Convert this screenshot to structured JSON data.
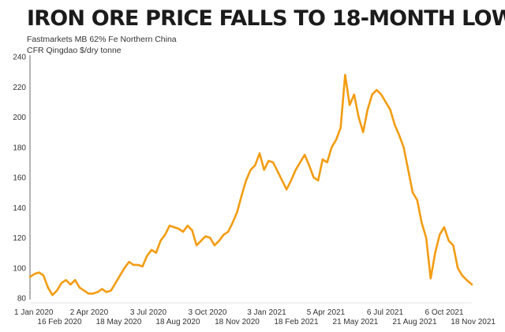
{
  "chart_data": {
    "type": "line",
    "title": "IRON ORE PRICE FALLS TO 18-MONTH LOW",
    "subtitle_lines": [
      "Fastmarkets MB 62% Fe Northern China",
      "CFR Qingdao $/dry tonne"
    ],
    "xlabel": "",
    "ylabel": "",
    "ylim": [
      80,
      240
    ],
    "y_ticks": [
      80,
      100,
      120,
      140,
      160,
      180,
      200,
      220,
      240
    ],
    "grid": false,
    "legend": "none",
    "line_color": "#F39C12",
    "x_tick_labels_top_row": [
      "1 Jan 2020",
      "2 Apr 2020",
      "3 Jul 2020",
      "3 Oct 2020",
      "3 Jan 2021",
      "5 Apr 2021",
      "6 Jul 2021",
      "6 Oct 2021"
    ],
    "x_tick_labels_bottom_row": [
      "16 Feb 2020",
      "18 May 2020",
      "18 Aug 2020",
      "18 Nov 2020",
      "18 Feb 2021",
      "21 May 2021",
      "21 Aug 2021",
      "18 Nov 2021"
    ],
    "series": [
      {
        "x": [
          "2020-01-01",
          "2020-01-08",
          "2020-01-15",
          "2020-01-22",
          "2020-01-29",
          "2020-02-05",
          "2020-02-12",
          "2020-02-19",
          "2020-02-26",
          "2020-03-04",
          "2020-03-11",
          "2020-03-18",
          "2020-03-25",
          "2020-04-01",
          "2020-04-08",
          "2020-04-15",
          "2020-04-22",
          "2020-04-29",
          "2020-05-06",
          "2020-05-13",
          "2020-05-20",
          "2020-05-27",
          "2020-06-03",
          "2020-06-10",
          "2020-06-17",
          "2020-06-24",
          "2020-07-01",
          "2020-07-08",
          "2020-07-15",
          "2020-07-22",
          "2020-07-29",
          "2020-08-05",
          "2020-08-12",
          "2020-08-19",
          "2020-08-26",
          "2020-09-02",
          "2020-09-09",
          "2020-09-16",
          "2020-09-23",
          "2020-09-30",
          "2020-10-07",
          "2020-10-14",
          "2020-10-21",
          "2020-10-28",
          "2020-11-04",
          "2020-11-11",
          "2020-11-18",
          "2020-11-25",
          "2020-12-02",
          "2020-12-09",
          "2020-12-16",
          "2020-12-23",
          "2020-12-30",
          "2021-01-06",
          "2021-01-13",
          "2021-01-20",
          "2021-01-27",
          "2021-02-03",
          "2021-02-10",
          "2021-02-17",
          "2021-02-24",
          "2021-03-03",
          "2021-03-10",
          "2021-03-17",
          "2021-03-24",
          "2021-03-31",
          "2021-04-07",
          "2021-04-14",
          "2021-04-21",
          "2021-04-28",
          "2021-05-05",
          "2021-05-12",
          "2021-05-19",
          "2021-05-26",
          "2021-06-02",
          "2021-06-09",
          "2021-06-16",
          "2021-06-23",
          "2021-06-30",
          "2021-07-07",
          "2021-07-14",
          "2021-07-21",
          "2021-07-28",
          "2021-08-04",
          "2021-08-11",
          "2021-08-18",
          "2021-08-25",
          "2021-09-01",
          "2021-09-08",
          "2021-09-15",
          "2021-09-22",
          "2021-09-29",
          "2021-10-06",
          "2021-10-13",
          "2021-10-20",
          "2021-10-27",
          "2021-11-03",
          "2021-11-10",
          "2021-11-18"
        ],
        "y": [
          94,
          96,
          97,
          95,
          87,
          82,
          85,
          90,
          92,
          89,
          92,
          87,
          85,
          83,
          83,
          84,
          86,
          84,
          85,
          90,
          95,
          100,
          104,
          102,
          102,
          101,
          108,
          112,
          110,
          118,
          122,
          128,
          127,
          126,
          124,
          128,
          125,
          115,
          118,
          121,
          120,
          115,
          118,
          122,
          124,
          130,
          137,
          148,
          158,
          165,
          168,
          176,
          165,
          171,
          170,
          164,
          158,
          152,
          158,
          165,
          170,
          175,
          168,
          160,
          158,
          172,
          170,
          180,
          185,
          193,
          228,
          208,
          215,
          200,
          190,
          205,
          215,
          218,
          215,
          210,
          205,
          195,
          188,
          180,
          165,
          150,
          145,
          130,
          120,
          93,
          110,
          122,
          127,
          118,
          115,
          100,
          95,
          92,
          89
        ]
      }
    ]
  }
}
